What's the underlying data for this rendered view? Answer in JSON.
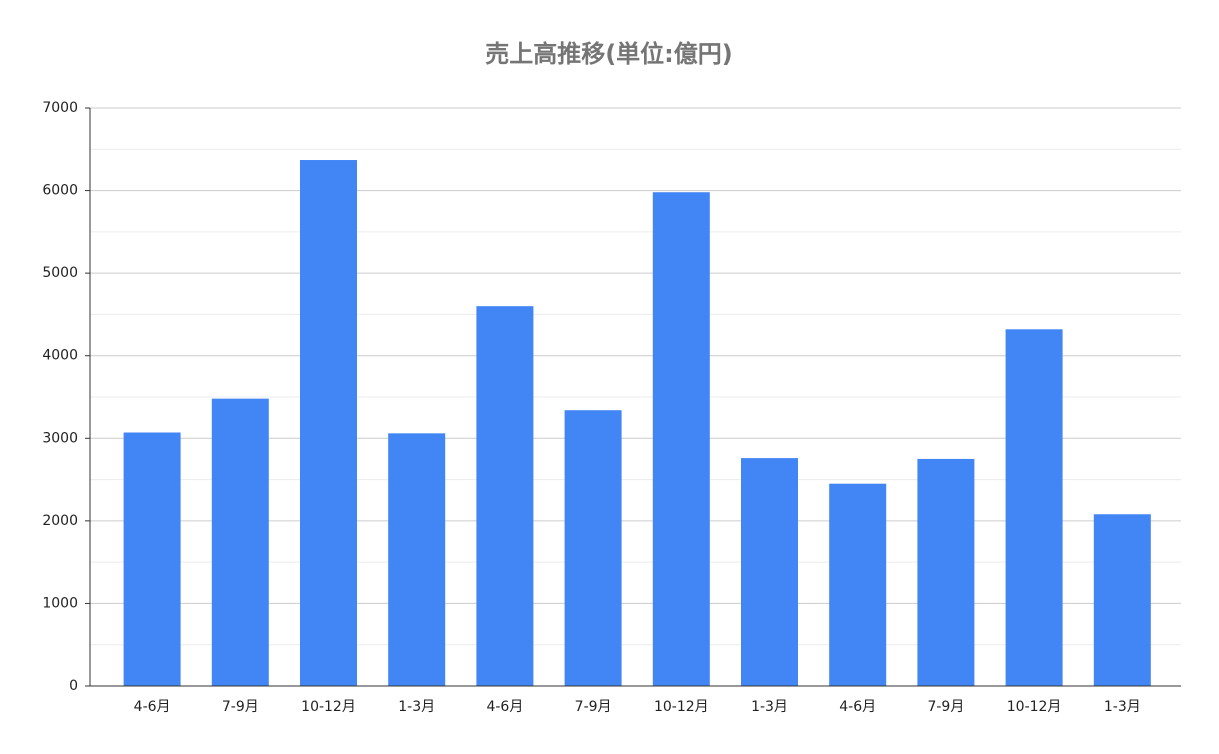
{
  "chart_data": {
    "type": "bar",
    "title": "売上高推移(単位:億円)",
    "categories": [
      "4-6月",
      "7-9月",
      "10-12月",
      "1-3月",
      "4-6月",
      "7-9月",
      "10-12月",
      "1-3月",
      "4-6月",
      "7-9月",
      "10-12月",
      "1-3月"
    ],
    "values": [
      3070,
      3480,
      6370,
      3060,
      4600,
      3340,
      5980,
      2760,
      2450,
      2750,
      4320,
      2080
    ],
    "color": "#4285f4",
    "ylim": [
      0,
      7000
    ],
    "yticks": [
      0,
      1000,
      2000,
      3000,
      4000,
      5000,
      6000,
      7000
    ],
    "minor_yticks": [
      500,
      1500,
      2500,
      3500,
      4500,
      5500,
      6500
    ],
    "grid": true
  }
}
